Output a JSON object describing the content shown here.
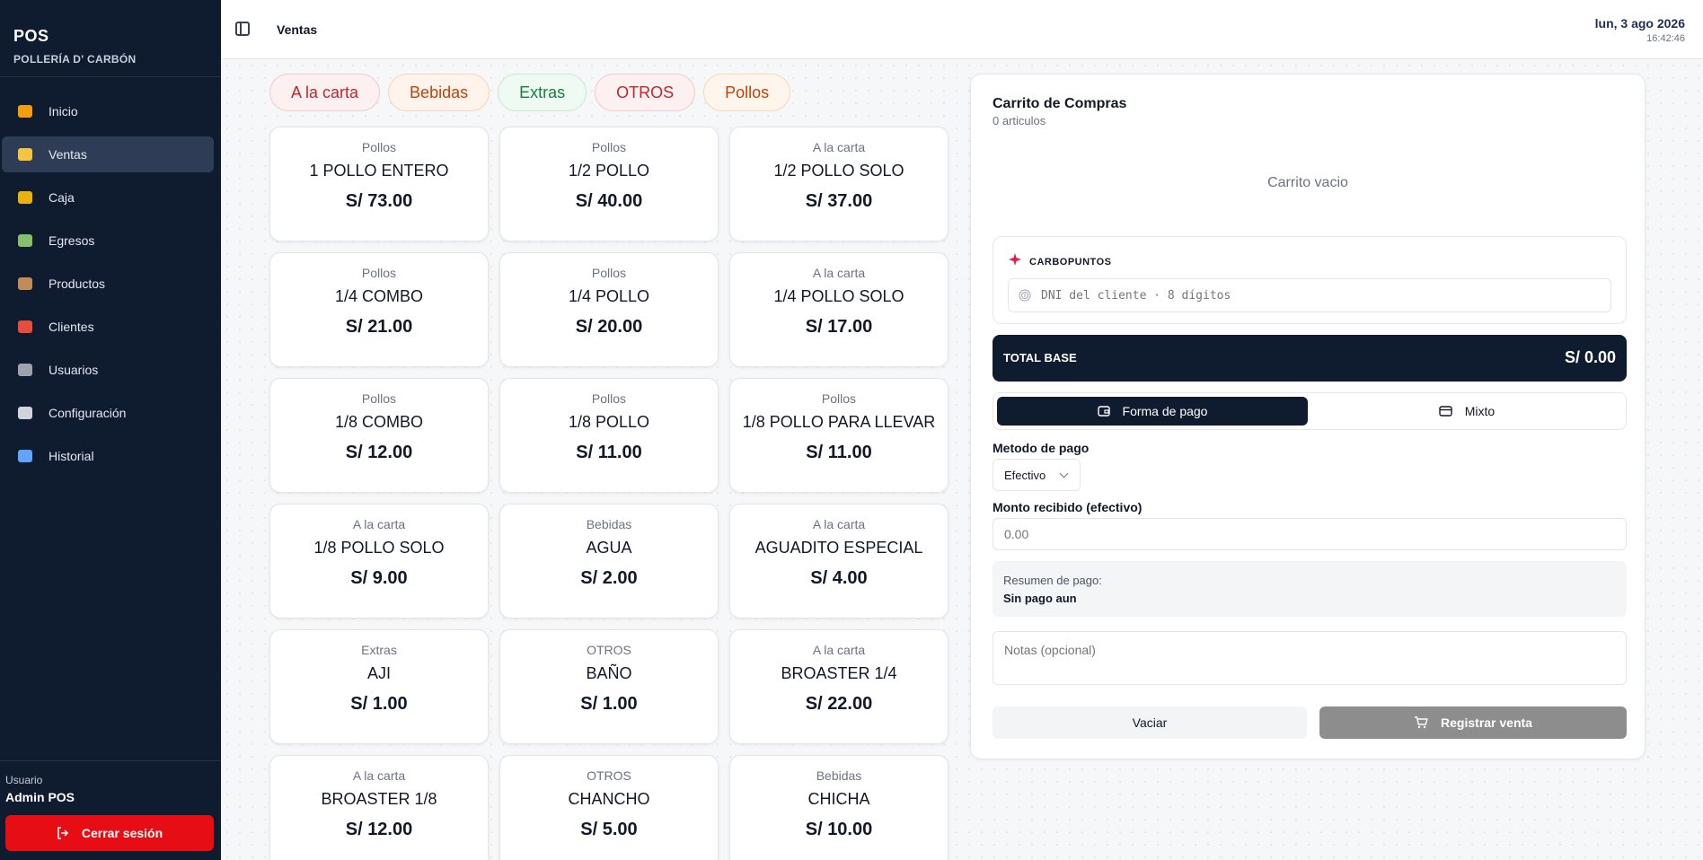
{
  "brand": {
    "title": "POS",
    "subtitle": "POLLERÍA D' CARBÓN"
  },
  "nav": [
    {
      "label": "Inicio",
      "icon": "house-icon",
      "color": "#f59e0b"
    },
    {
      "label": "Ventas",
      "icon": "credit-card-icon",
      "color": "#f4c542",
      "active": true
    },
    {
      "label": "Caja",
      "icon": "money-bag-icon",
      "color": "#eab308"
    },
    {
      "label": "Egresos",
      "icon": "money-bill-icon",
      "color": "#86c06b"
    },
    {
      "label": "Productos",
      "icon": "package-icon",
      "color": "#c28b5a"
    },
    {
      "label": "Clientes",
      "icon": "target-icon",
      "color": "#e74c3c"
    },
    {
      "label": "Usuarios",
      "icon": "users-icon",
      "color": "#9ca3af"
    },
    {
      "label": "Configuración",
      "icon": "gear-icon",
      "color": "#d1d5db"
    },
    {
      "label": "Historial",
      "icon": "chart-icon",
      "color": "#60a5fa"
    }
  ],
  "user": {
    "caption": "Usuario",
    "name": "Admin POS",
    "logout_label": "Cerrar sesión"
  },
  "header": {
    "title": "Ventas",
    "date": "lun, 3 ago 2026",
    "time": "16:42:46"
  },
  "categories": [
    {
      "label": "A la carta",
      "color": "#c0262d",
      "bg": "#fdf0f0",
      "border": "#f3c9c9"
    },
    {
      "label": "Bebidas",
      "color": "#c2410c",
      "bg": "#fef4ec",
      "border": "#f7d4b8"
    },
    {
      "label": "Extras",
      "color": "#15803d",
      "bg": "#effaf2",
      "border": "#c7e9d1"
    },
    {
      "label": "OTROS",
      "color": "#c0262d",
      "bg": "#fdf0f0",
      "border": "#f3c9c9"
    },
    {
      "label": "Pollos",
      "color": "#c2410c",
      "bg": "#fef6ec",
      "border": "#f6d8b2"
    }
  ],
  "products": [
    {
      "category": "Pollos",
      "name": "1 POLLO ENTERO",
      "price": "S/ 73.00"
    },
    {
      "category": "Pollos",
      "name": "1/2 POLLO",
      "price": "S/ 40.00"
    },
    {
      "category": "A la carta",
      "name": "1/2 POLLO SOLO",
      "price": "S/ 37.00"
    },
    {
      "category": "Pollos",
      "name": "1/4 COMBO",
      "price": "S/ 21.00"
    },
    {
      "category": "Pollos",
      "name": "1/4 POLLO",
      "price": "S/ 20.00"
    },
    {
      "category": "A la carta",
      "name": "1/4 POLLO SOLO",
      "price": "S/ 17.00"
    },
    {
      "category": "Pollos",
      "name": "1/8 COMBO",
      "price": "S/ 12.00"
    },
    {
      "category": "Pollos",
      "name": "1/8 POLLO",
      "price": "S/ 11.00"
    },
    {
      "category": "Pollos",
      "name": "1/8 POLLO PARA LLEVAR",
      "price": "S/ 11.00"
    },
    {
      "category": "A la carta",
      "name": "1/8 POLLO SOLO",
      "price": "S/ 9.00"
    },
    {
      "category": "Bebidas",
      "name": "AGUA",
      "price": "S/ 2.00"
    },
    {
      "category": "A la carta",
      "name": "AGUADITO ESPECIAL",
      "price": "S/ 4.00"
    },
    {
      "category": "Extras",
      "name": "AJI",
      "price": "S/ 1.00"
    },
    {
      "category": "OTROS",
      "name": "BAÑO",
      "price": "S/ 1.00"
    },
    {
      "category": "A la carta",
      "name": "BROASTER 1/4",
      "price": "S/ 22.00"
    },
    {
      "category": "A la carta",
      "name": "BROASTER 1/8",
      "price": "S/ 12.00"
    },
    {
      "category": "OTROS",
      "name": "CHANCHO",
      "price": "S/ 5.00"
    },
    {
      "category": "Bebidas",
      "name": "CHICHA",
      "price": "S/ 10.00"
    }
  ],
  "cart": {
    "title": "Carrito de Compras",
    "count": "0 articulos",
    "empty": "Carrito vacio",
    "points_label": "CARBOPUNTOS",
    "dni_placeholder": "DNI del cliente · 8 dígitos",
    "total_label": "TOTAL BASE",
    "total_value": "S/ 0.00",
    "tab_payment": "Forma de pago",
    "tab_mixed": "Mixto",
    "method_label": "Metodo de pago",
    "method_value": "Efectivo",
    "amount_label": "Monto recibido (efectivo)",
    "amount_placeholder": "0.00",
    "summary_caption": "Resumen de pago:",
    "summary_value": "Sin pago aun",
    "notes_placeholder": "Notas (opcional)",
    "clear_label": "Vaciar",
    "register_label": "Registrar venta"
  }
}
